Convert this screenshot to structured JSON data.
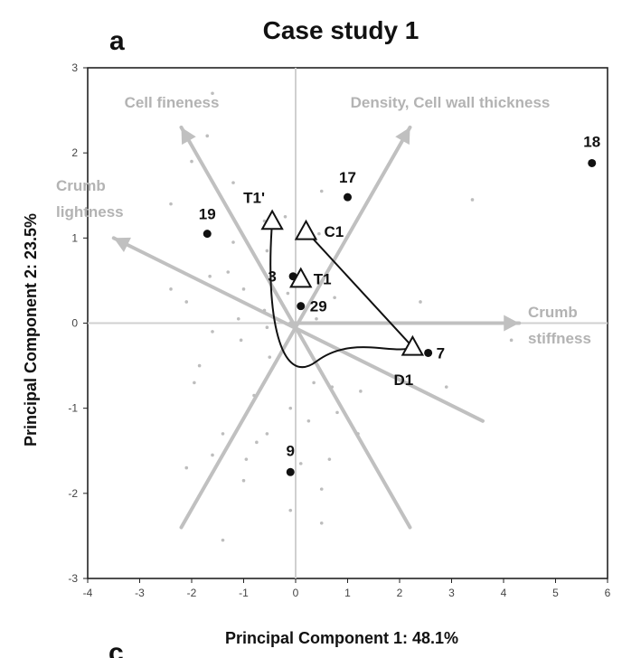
{
  "chart_data": {
    "type": "scatter",
    "panel_letter": "a",
    "next_panel_letter": "c",
    "title": "Case study 1",
    "xlabel": "Principal Component 1: 48.1%",
    "ylabel": "Principal Component 2: 23.5%",
    "xlim": [
      -4,
      6
    ],
    "ylim": [
      -3,
      3
    ],
    "x_ticks": [
      "-4",
      "-3",
      "-2",
      "-1",
      "0",
      "1",
      "2",
      "3",
      "4",
      "5",
      "6"
    ],
    "y_ticks": [
      "-3",
      "-2",
      "-1",
      "0",
      "1",
      "2",
      "3"
    ],
    "grid": false,
    "colors": {
      "vectors": "#c0c0c0",
      "vector_labels": "#b3b3b3",
      "points": "#111111",
      "minor_points": "#bdbdbd",
      "axes": "#d0d0d0"
    },
    "vectors": [
      {
        "label": "Cell fineness",
        "from": [
          2.2,
          -2.4
        ],
        "to": [
          -2.2,
          2.3
        ]
      },
      {
        "label": "Density, Cell wall thickness",
        "from": [
          -2.2,
          -2.4
        ],
        "to": [
          2.2,
          2.3
        ]
      },
      {
        "label": "Crumb lightness",
        "from": [
          3.6,
          -1.15
        ],
        "to": [
          -3.5,
          1.0
        ]
      },
      {
        "label": "Crumb stiffness",
        "from": [
          -0.1,
          0.0
        ],
        "to": [
          4.3,
          0.0
        ]
      }
    ],
    "labeled_points": [
      {
        "label": "18",
        "x": 5.7,
        "y": 1.88
      },
      {
        "label": "17",
        "x": 1.0,
        "y": 1.48
      },
      {
        "label": "19",
        "x": -1.7,
        "y": 1.05
      },
      {
        "label": "3",
        "x": -0.05,
        "y": 0.55
      },
      {
        "label": "29",
        "x": 0.1,
        "y": 0.2
      },
      {
        "label": "7",
        "x": 2.55,
        "y": -0.35
      },
      {
        "label": "9",
        "x": -0.1,
        "y": -1.75
      }
    ],
    "treatments": [
      {
        "label": "T1'",
        "x": -0.45,
        "y": 1.2
      },
      {
        "label": "C1",
        "x": 0.2,
        "y": 1.08
      },
      {
        "label": "T1",
        "x": 0.1,
        "y": 0.52
      },
      {
        "label": "D1",
        "x": 2.25,
        "y": -0.28
      }
    ],
    "minor_points": [
      [
        -1.6,
        2.7
      ],
      [
        -1.7,
        2.2
      ],
      [
        -2.0,
        1.9
      ],
      [
        -1.2,
        1.65
      ],
      [
        0.5,
        1.55
      ],
      [
        3.4,
        1.45
      ],
      [
        -2.4,
        1.4
      ],
      [
        -0.2,
        1.25
      ],
      [
        -0.6,
        1.2
      ],
      [
        0.45,
        1.05
      ],
      [
        -1.2,
        0.95
      ],
      [
        -0.55,
        0.85
      ],
      [
        -1.3,
        0.6
      ],
      [
        -1.65,
        0.55
      ],
      [
        -2.4,
        0.4
      ],
      [
        -1.0,
        0.4
      ],
      [
        -0.15,
        0.35
      ],
      [
        0.75,
        0.3
      ],
      [
        -2.1,
        0.25
      ],
      [
        -0.6,
        0.15
      ],
      [
        2.4,
        0.25
      ],
      [
        -1.1,
        0.05
      ],
      [
        -0.55,
        -0.05
      ],
      [
        0.4,
        0.05
      ],
      [
        -1.6,
        -0.1
      ],
      [
        -1.05,
        -0.2
      ],
      [
        -0.5,
        -0.4
      ],
      [
        -1.85,
        -0.5
      ],
      [
        0.35,
        -0.7
      ],
      [
        -1.95,
        -0.7
      ],
      [
        1.25,
        -0.8
      ],
      [
        0.7,
        -0.75
      ],
      [
        2.9,
        -0.75
      ],
      [
        -0.8,
        -0.85
      ],
      [
        -0.1,
        -1.0
      ],
      [
        0.25,
        -1.15
      ],
      [
        0.8,
        -1.05
      ],
      [
        -0.55,
        -1.3
      ],
      [
        -1.4,
        -1.3
      ],
      [
        1.2,
        -1.3
      ],
      [
        -0.75,
        -1.4
      ],
      [
        -1.6,
        -1.55
      ],
      [
        -0.95,
        -1.6
      ],
      [
        0.65,
        -1.6
      ],
      [
        0.1,
        -1.65
      ],
      [
        -2.1,
        -1.7
      ],
      [
        -1.0,
        -1.85
      ],
      [
        0.5,
        -1.95
      ],
      [
        -0.1,
        -2.2
      ],
      [
        0.5,
        -2.35
      ],
      [
        -1.4,
        -2.55
      ],
      [
        4.15,
        -0.2
      ]
    ],
    "curve_path": {
      "through": [
        [
          -0.45,
          1.2
        ],
        [
          -0.45,
          0.2
        ],
        [
          0.4,
          -0.45
        ],
        [
          2.25,
          -0.28
        ]
      ]
    },
    "line_segment": {
      "from": [
        0.2,
        1.08
      ],
      "to": [
        2.25,
        -0.28
      ]
    }
  }
}
